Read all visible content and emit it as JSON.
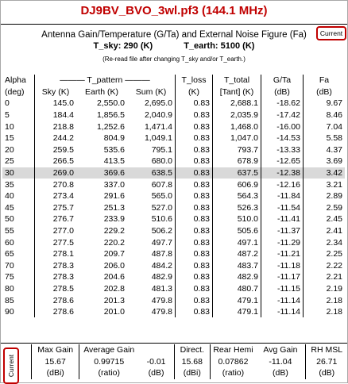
{
  "title": "DJ9BV_BVO_3wl.pf3 (144.1 MHz)",
  "subtitle": "Antenna Gain/Temperature (G/Ta) and External Noise Figure (Fa)",
  "t_sky_label": "T_sky:  290  (K)",
  "t_earth_label": "T_earth:  5100  (K)",
  "reread_note": "(Re-read file after changing T_sky and/or T_earth.)",
  "current_label": "Current",
  "headers": {
    "alpha": "Alpha",
    "alpha_unit": "(deg)",
    "t_pattern": "——— T_pattern ———",
    "sky": "Sky (K)",
    "earth": "Earth (K)",
    "sum": "Sum (K)",
    "t_loss": "T_loss",
    "t_loss_unit": "(K)",
    "t_total": "T_total",
    "t_total_unit": "[Tant] (K)",
    "g_ta": "G/Ta",
    "g_ta_unit": "(dB)",
    "fa": "Fa",
    "fa_unit": "(dB)"
  },
  "rows": [
    [
      "0",
      "145.0",
      "2,550.0",
      "2,695.0",
      "0.83",
      "2,688.1",
      "-18.62",
      "9.67"
    ],
    [
      "5",
      "184.4",
      "1,856.5",
      "2,040.9",
      "0.83",
      "2,035.9",
      "-17.42",
      "8.46"
    ],
    [
      "10",
      "218.8",
      "1,252.6",
      "1,471.4",
      "0.83",
      "1,468.0",
      "-16.00",
      "7.04"
    ],
    [
      "15",
      "244.2",
      "804.9",
      "1,049.1",
      "0.83",
      "1,047.0",
      "-14.53",
      "5.58"
    ],
    [
      "20",
      "259.5",
      "535.6",
      "795.1",
      "0.83",
      "793.7",
      "-13.33",
      "4.37"
    ],
    [
      "25",
      "266.5",
      "413.5",
      "680.0",
      "0.83",
      "678.9",
      "-12.65",
      "3.69"
    ],
    [
      "30",
      "269.0",
      "369.6",
      "638.5",
      "0.83",
      "637.5",
      "-12.38",
      "3.42"
    ],
    [
      "35",
      "270.8",
      "337.0",
      "607.8",
      "0.83",
      "606.9",
      "-12.16",
      "3.21"
    ],
    [
      "40",
      "273.4",
      "291.6",
      "565.0",
      "0.83",
      "564.3",
      "-11.84",
      "2.89"
    ],
    [
      "45",
      "275.7",
      "251.3",
      "527.0",
      "0.83",
      "526.3",
      "-11.54",
      "2.59"
    ],
    [
      "50",
      "276.7",
      "233.9",
      "510.6",
      "0.83",
      "510.0",
      "-11.41",
      "2.45"
    ],
    [
      "55",
      "277.0",
      "229.2",
      "506.2",
      "0.83",
      "505.6",
      "-11.37",
      "2.41"
    ],
    [
      "60",
      "277.5",
      "220.2",
      "497.7",
      "0.83",
      "497.1",
      "-11.29",
      "2.34"
    ],
    [
      "65",
      "278.1",
      "209.7",
      "487.8",
      "0.83",
      "487.2",
      "-11.21",
      "2.25"
    ],
    [
      "70",
      "278.3",
      "206.0",
      "484.2",
      "0.83",
      "483.7",
      "-11.18",
      "2.22"
    ],
    [
      "75",
      "278.3",
      "204.6",
      "482.9",
      "0.83",
      "482.9",
      "-11.17",
      "2.21"
    ],
    [
      "80",
      "278.5",
      "202.8",
      "481.3",
      "0.83",
      "480.7",
      "-11.15",
      "2.19"
    ],
    [
      "85",
      "278.6",
      "201.3",
      "479.8",
      "0.83",
      "479.1",
      "-11.14",
      "2.18"
    ],
    [
      "90",
      "278.6",
      "201.0",
      "479.8",
      "0.83",
      "479.1",
      "-11.14",
      "2.18"
    ]
  ],
  "highlight_row": 6,
  "footer": {
    "headers": [
      "Max Gain",
      "Average Gain",
      "",
      "Direct.",
      "Rear Hemi",
      "Avg Gain",
      "RH MSL"
    ],
    "values": [
      "15.67",
      "0.99715",
      "-0.01",
      "15.68",
      "0.07862",
      "-11.04",
      "26.71"
    ],
    "units": [
      "(dBi)",
      "(ratio)",
      "(dB)",
      "(dBi)",
      "(ratio)",
      "(dB)",
      "(dB)"
    ]
  }
}
